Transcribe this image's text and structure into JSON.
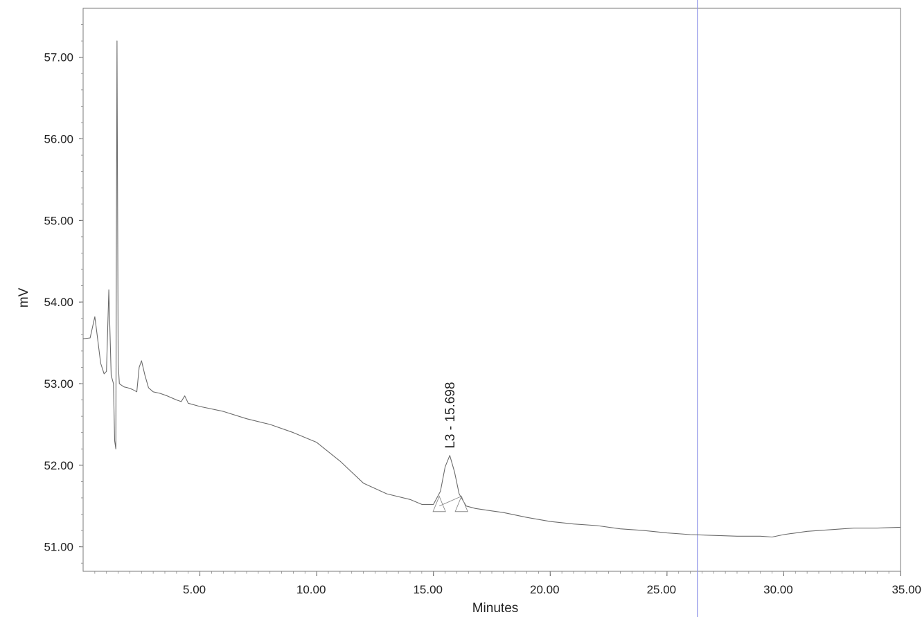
{
  "chart_data": {
    "type": "line",
    "title": "",
    "xlabel": "Minutes",
    "ylabel": "mV",
    "xlim": [
      0,
      35
    ],
    "ylim": [
      50.7,
      57.6
    ],
    "grid": false,
    "x_ticks": [
      {
        "value": 5,
        "label": "5.00"
      },
      {
        "value": 10,
        "label": "10.00"
      },
      {
        "value": 15,
        "label": "15.00"
      },
      {
        "value": 20,
        "label": "20.00"
      },
      {
        "value": 25,
        "label": "25.00"
      },
      {
        "value": 30,
        "label": "30.00"
      },
      {
        "value": 35,
        "label": "35.00"
      }
    ],
    "y_ticks": [
      {
        "value": 51,
        "label": "51.00"
      },
      {
        "value": 52,
        "label": "52.00"
      },
      {
        "value": 53,
        "label": "53.00"
      },
      {
        "value": 54,
        "label": "54.00"
      },
      {
        "value": 55,
        "label": "55.00"
      },
      {
        "value": 56,
        "label": "56.00"
      },
      {
        "value": 57,
        "label": "57.00"
      }
    ],
    "marker_line_x": 26.3,
    "series": [
      {
        "x": [
          0,
          0.3,
          0.5,
          0.6,
          0.75,
          0.9,
          1.0,
          1.1,
          1.2,
          1.3,
          1.35,
          1.4,
          1.45,
          1.5,
          1.55,
          1.65,
          1.75,
          1.9,
          2.1,
          2.3,
          2.4,
          2.5,
          2.65,
          2.8,
          3.0,
          3.3,
          3.6,
          4.0,
          4.2,
          4.35,
          4.5,
          5.0,
          6.0,
          7.0,
          8.0,
          9.0,
          10.0,
          11.0,
          12.0,
          13.0,
          14.0,
          14.5,
          15.0,
          15.3,
          15.5,
          15.7,
          15.9,
          16.1,
          16.4,
          16.8,
          17.5,
          18.0,
          19.0,
          20.0,
          21.0,
          22.0,
          23.0,
          24.0,
          25.0,
          26.0,
          27.0,
          28.0,
          29.0,
          29.5,
          30.0,
          31.0,
          32.0,
          33.0,
          34.0,
          35.0
        ],
        "values": [
          53.55,
          53.56,
          53.82,
          53.6,
          53.25,
          53.12,
          53.15,
          54.15,
          53.1,
          53.0,
          52.3,
          52.2,
          57.2,
          53.25,
          53.0,
          52.98,
          52.96,
          52.95,
          52.93,
          52.9,
          53.2,
          53.28,
          53.1,
          52.95,
          52.9,
          52.88,
          52.85,
          52.8,
          52.78,
          52.85,
          52.76,
          52.72,
          52.66,
          52.57,
          52.5,
          52.4,
          52.28,
          52.05,
          51.78,
          51.65,
          51.58,
          51.52,
          51.52,
          51.68,
          51.98,
          52.12,
          51.92,
          51.65,
          51.5,
          51.47,
          51.44,
          51.42,
          51.36,
          51.31,
          51.28,
          51.26,
          51.22,
          51.2,
          51.17,
          51.15,
          51.14,
          51.13,
          51.13,
          51.12,
          51.15,
          51.19,
          51.21,
          51.23,
          51.23,
          51.24
        ]
      }
    ],
    "annotations": [
      {
        "text": "L3 - 15.698",
        "x": 15.698,
        "y": 52.12
      }
    ]
  }
}
